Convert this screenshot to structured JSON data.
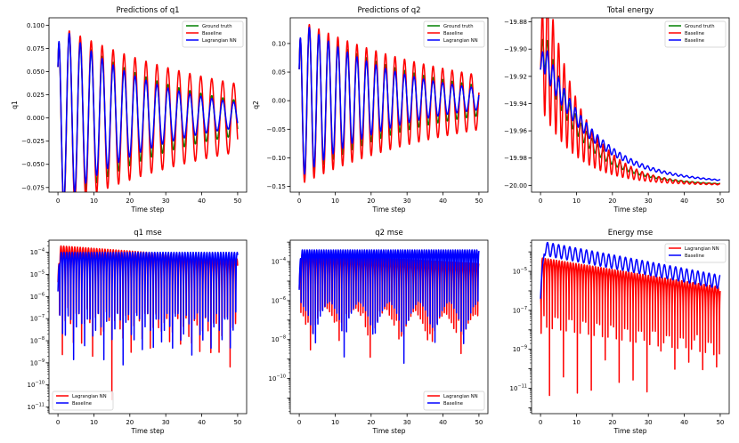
{
  "colors": {
    "ground_truth": "#008000",
    "baseline": "#ff0000",
    "lagrangian": "#0000ff"
  },
  "chart_data": [
    {
      "id": "pred-q1",
      "type": "line",
      "title": "Predictions of q1",
      "xlabel": "Time step",
      "ylabel": "q1",
      "xlim": [
        -2.5,
        52.5
      ],
      "ylim": [
        -0.08,
        0.108
      ],
      "xticks": [
        0,
        10,
        20,
        30,
        40,
        50
      ],
      "xtick_labels": [
        "0",
        "10",
        "20",
        "30",
        "40",
        "50"
      ],
      "yticks": [
        -0.075,
        -0.05,
        -0.025,
        0.0,
        0.025,
        0.05,
        0.075,
        0.1
      ],
      "ytick_labels": [
        "−0.075",
        "−0.050",
        "−0.025",
        "0.000",
        "0.025",
        "0.050",
        "0.075",
        "0.100"
      ],
      "legend": {
        "position": "top-right",
        "entries": [
          {
            "label": "Ground truth",
            "color": "#008000"
          },
          {
            "label": "Baseline",
            "color": "#ff0000"
          },
          {
            "label": "Lagrangian NN",
            "color": "#0000ff"
          }
        ]
      },
      "series": [
        {
          "name": "Ground truth",
          "color": "#008000",
          "model": {
            "kind": "osc",
            "A0": 0.1,
            "tau": 30,
            "P": 3.05,
            "phi": 1.35,
            "off": 0.0,
            "y0": 0.055
          }
        },
        {
          "name": "Baseline",
          "color": "#ff0000",
          "model": {
            "kind": "osc",
            "A0": 0.1,
            "tau": 50,
            "P": 3.05,
            "phi": 1.35,
            "off": 0.0,
            "y0": 0.055
          }
        },
        {
          "name": "Lagrangian NN",
          "color": "#0000ff",
          "model": {
            "kind": "osc",
            "A0": 0.1,
            "tau": 25,
            "P": 3.05,
            "phi": 1.35,
            "off": 0.003,
            "y0": 0.055
          }
        }
      ]
    },
    {
      "id": "pred-q2",
      "type": "line",
      "title": "Predictions of q2",
      "xlabel": "Time step",
      "ylabel": "q2",
      "xlim": [
        -2.5,
        52.5
      ],
      "ylim": [
        -0.16,
        0.145
      ],
      "xticks": [
        0,
        10,
        20,
        30,
        40,
        50
      ],
      "xtick_labels": [
        "0",
        "10",
        "20",
        "30",
        "40",
        "50"
      ],
      "yticks": [
        -0.15,
        -0.1,
        -0.05,
        0.0,
        0.05,
        0.1
      ],
      "ytick_labels": [
        "−0.15",
        "−0.10",
        "−0.05",
        "0.00",
        "0.05",
        "0.10"
      ],
      "legend": {
        "position": "top-right",
        "entries": [
          {
            "label": "Ground truth",
            "color": "#008000"
          },
          {
            "label": "Baseline",
            "color": "#ff0000"
          },
          {
            "label": "Lagrangian NN",
            "color": "#0000ff"
          }
        ]
      },
      "series": [
        {
          "name": "Ground truth",
          "color": "#008000",
          "model": {
            "kind": "osc",
            "A0": 0.14,
            "tau": 30,
            "P": 2.65,
            "phi": 1.2,
            "off": 0.0,
            "y0": 0.055
          }
        },
        {
          "name": "Baseline",
          "color": "#ff0000",
          "model": {
            "kind": "osc",
            "A0": 0.145,
            "tau": 45,
            "P": 2.65,
            "phi": 1.2,
            "off": -0.003,
            "y0": 0.055
          }
        },
        {
          "name": "Lagrangian NN",
          "color": "#0000ff",
          "model": {
            "kind": "osc",
            "A0": 0.14,
            "tau": 25,
            "P": 2.65,
            "phi": 1.2,
            "off": 0.003,
            "y0": 0.055
          }
        }
      ]
    },
    {
      "id": "total-energy",
      "type": "line",
      "title": "Total energy",
      "xlabel": "Time step",
      "ylabel": "",
      "xlim": [
        -2.5,
        52.5
      ],
      "ylim": [
        -20.005,
        -19.877
      ],
      "xticks": [
        0,
        10,
        20,
        30,
        40,
        50
      ],
      "xtick_labels": [
        "0",
        "10",
        "20",
        "30",
        "40",
        "50"
      ],
      "yticks": [
        -20.0,
        -19.98,
        -19.96,
        -19.94,
        -19.92,
        -19.9,
        -19.88
      ],
      "ytick_labels": [
        "−20.00",
        "−19.98",
        "−19.96",
        "−19.94",
        "−19.92",
        "−19.90",
        "−19.88"
      ],
      "legend": {
        "position": "top-right",
        "entries": [
          {
            "label": "Ground truth",
            "color": "#008000"
          },
          {
            "label": "Baseline",
            "color": "#ff0000"
          },
          {
            "label": "Baseline",
            "color": "#0000ff"
          }
        ]
      },
      "series": [
        {
          "name": "Ground truth",
          "color": "#008000",
          "model": {
            "kind": "energy",
            "base": -20.0,
            "A": 0.11,
            "tau": 11,
            "a": 0.15,
            "P": 1.55,
            "start": -19.915,
            "pk": 0.8
          }
        },
        {
          "name": "Baseline",
          "color": "#ff0000",
          "model": {
            "kind": "energy",
            "base": -20.0,
            "A": 0.115,
            "tau": 10,
            "a": 0.5,
            "P": 1.55,
            "start": -19.915,
            "pk": 0.8
          }
        },
        {
          "name": "Baseline",
          "color": "#0000ff",
          "model": {
            "kind": "energy",
            "base": -19.999,
            "A": 0.1,
            "tau": 14,
            "a": 0.12,
            "P": 1.55,
            "start": -19.915,
            "pk": 0.9
          }
        }
      ]
    },
    {
      "id": "q1-mse",
      "type": "line",
      "title": "q1 mse",
      "xlabel": "Time step",
      "ylabel": "",
      "yscale": "log",
      "xlim": [
        -2.5,
        52.5
      ],
      "ylim": [
        -11.3,
        -3.45
      ],
      "xticks": [
        0,
        10,
        20,
        30,
        40,
        50
      ],
      "xtick_labels": [
        "0",
        "10",
        "20",
        "30",
        "40",
        "50"
      ],
      "ylog_ticks": [
        -11,
        -10,
        -9,
        -8,
        -7,
        -6,
        -5,
        -4
      ],
      "legend": {
        "position": "bottom-left",
        "entries": [
          {
            "label": "Lagrangian NN",
            "color": "#ff0000"
          },
          {
            "label": "Baseline",
            "color": "#0000ff"
          }
        ]
      },
      "series": [
        {
          "name": "Lagrangian NN",
          "color": "#ff0000",
          "model": {
            "kind": "mse",
            "top": -3.7,
            "decay": 0.012,
            "P": 1.53,
            "phi": 0.3,
            "minlo": -11.2,
            "minhi": -7.0,
            "seed": 11
          }
        },
        {
          "name": "Baseline",
          "color": "#0000ff",
          "model": {
            "kind": "mse",
            "top": -4.0,
            "decay": 0.0,
            "P": 1.53,
            "phi": 1.0,
            "minlo": -10.5,
            "minhi": -7.2,
            "seed": 23
          }
        }
      ]
    },
    {
      "id": "q2-mse",
      "type": "line",
      "title": "q2 mse",
      "xlabel": "Time step",
      "ylabel": "",
      "yscale": "log",
      "xlim": [
        -2.5,
        52.5
      ],
      "ylim": [
        -11.8,
        -2.9
      ],
      "xticks": [
        0,
        10,
        20,
        30,
        40,
        50
      ],
      "xtick_labels": [
        "0",
        "10",
        "20",
        "30",
        "40",
        "50"
      ],
      "ylog_ticks": [
        -10,
        -8,
        -6,
        -4
      ],
      "legend": {
        "position": "bottom-right",
        "entries": [
          {
            "label": "Lagrangian NN",
            "color": "#ff0000"
          },
          {
            "label": "Baseline",
            "color": "#0000ff"
          }
        ]
      },
      "series": [
        {
          "name": "Lagrangian NN",
          "color": "#ff0000",
          "model": {
            "kind": "mse",
            "top": -3.6,
            "decay": 0.01,
            "P": 1.33,
            "phi": 0.2,
            "minlo": -9.5,
            "minhi": -6.8,
            "seed": 5
          }
        },
        {
          "name": "Baseline",
          "color": "#0000ff",
          "model": {
            "kind": "mse",
            "top": -3.4,
            "decay": 0.0,
            "P": 1.33,
            "phi": 0.8,
            "minlo": -9.6,
            "minhi": -7.0,
            "seed": 17
          }
        }
      ]
    },
    {
      "id": "energy-mse",
      "type": "line",
      "title": "Energy mse",
      "xlabel": "Time step",
      "ylabel": "",
      "yscale": "log",
      "xlim": [
        -2.5,
        52.5
      ],
      "ylim": [
        -12.3,
        -3.4
      ],
      "xticks": [
        0,
        10,
        20,
        30,
        40,
        50
      ],
      "xtick_labels": [
        "0",
        "10",
        "20",
        "30",
        "40",
        "50"
      ],
      "ylog_ticks": [
        -11,
        -9,
        -7,
        -5
      ],
      "legend": {
        "position": "top-right",
        "entries": [
          {
            "label": "Lagrangian NN",
            "color": "#ff0000"
          },
          {
            "label": "Baseline",
            "color": "#0000ff"
          }
        ]
      },
      "series": [
        {
          "name": "Lagrangian NN",
          "color": "#ff0000",
          "model": {
            "kind": "emse",
            "top": -4.3,
            "slope": 0.03,
            "P": 1.55,
            "phi": 0.6,
            "minlo": -11.5,
            "minhi": -8.5,
            "seed": 31
          }
        },
        {
          "name": "Baseline",
          "color": "#0000ff",
          "model": {
            "kind": "ebase",
            "top": -3.8,
            "slope": 0.035,
            "amp": 0.35,
            "P": 1.55
          }
        }
      ]
    }
  ]
}
